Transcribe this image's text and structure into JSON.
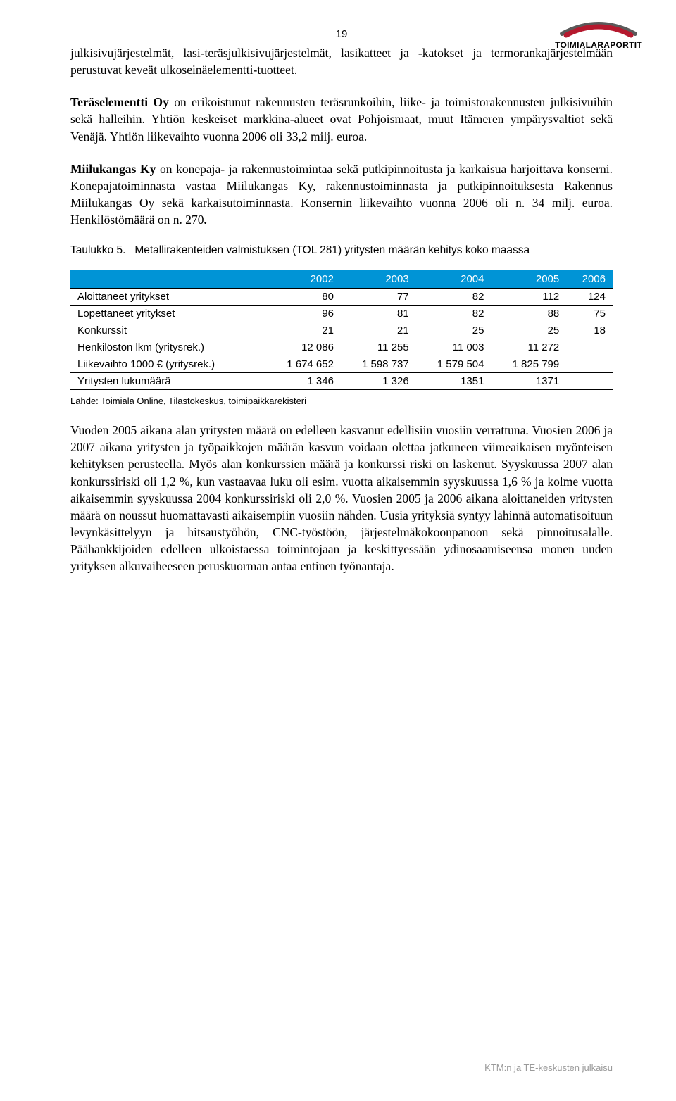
{
  "page_number": "19",
  "logo": {
    "brand": "TOIMIALARAPORTIT",
    "arc_back": "#5a5a5a",
    "arc_front": "#b5192e"
  },
  "paragraphs": {
    "p1": "julkisivujärjestelmät, lasi-teräsjulkisivujärjestelmät, lasikatteet ja -katokset ja termorankajärjestelmään perustuvat keveät ulkoseinäelementti-tuotteet.",
    "p2a_bold": "Teräselementti Oy",
    "p2a": " on erikoistunut rakennusten teräsrunkoihin, liike- ja toimistorakennusten julkisivuihin sekä halleihin. Yhtiön keskeiset markkina-alueet ovat Pohjoismaat, muut Itämeren ympärysvaltiot sekä Venäjä. Yhtiön liikevaihto vuonna 2006 oli 33,2 milj. euroa.",
    "p3a_bold": "Miilukangas Ky",
    "p3a": " on konepaja- ja rakennustoimintaa sekä putkipinnoitusta ja karkaisua harjoittava konserni. Konepajatoiminnasta vastaa Miilukangas Ky, rakennustoiminnasta ja putkipinnoituksesta Rakennus Miilukangas Oy sekä karkaisutoiminnasta. Konsernin liikevaihto vuonna 2006 oli n. 34 milj. euroa. Henkilöstömäärä on n. 270",
    "p3_bold_dot": ".",
    "p4": "Vuoden 2005 aikana alan yritysten määrä on edelleen kasvanut edellisiin vuosiin verrattuna. Vuosien 2006 ja 2007 aikana yritysten ja työpaikkojen määrän kasvun voidaan olettaa jatkuneen viimeaikaisen myönteisen kehityksen perusteella. Myös alan konkurssien määrä ja konkurssi riski on laskenut. Syyskuussa 2007 alan konkurssiriski oli 1,2 %, kun vastaavaa luku oli esim. vuotta aikaisemmin syyskuussa 1,6 % ja kolme vuotta aikaisemmin syyskuussa 2004 konkurssiriski oli 2,0 %. Vuosien 2005 ja 2006 aikana aloittaneiden yritysten määrä on noussut huomattavasti aikaisempiin vuosiin nähden. Uusia yrityksiä syntyy lähinnä automatisoituun levynkäsittelyyn ja hitsaustyöhön, CNC-työstöön, järjestelmäkokoonpanoon sekä pinnoitusalalle. Päähankkijoiden edelleen ulkoistaessa toimintojaan ja keskittyessään ydinosaamiseensa monen uuden yrityksen alkuvaiheeseen peruskuorman antaa entinen työnantaja."
  },
  "table": {
    "caption_prefix": "Taulukko 5.",
    "caption_rest": "Metallirakenteiden valmistuksen (TOL 281) yritysten määrän kehitys koko maassa",
    "header": [
      "",
      "2002",
      "2003",
      "2004",
      "2005",
      "2006"
    ],
    "rows": [
      [
        "Aloittaneet yritykset",
        "80",
        "77",
        "82",
        "112",
        "124"
      ],
      [
        "Lopettaneet yritykset",
        "96",
        "81",
        "82",
        "88",
        "75"
      ],
      [
        "Konkurssit",
        "21",
        "21",
        "25",
        "25",
        "18"
      ],
      [
        "Henkilöstön lkm (yritysrek.)",
        "12 086",
        "11 255",
        "11 003",
        "11 272",
        ""
      ],
      [
        "Liikevaihto 1000 € (yritysrek.)",
        "1 674 652",
        "1 598 737",
        "1 579 504",
        "1 825 799",
        ""
      ],
      [
        "Yritysten lukumäärä",
        "1 346",
        "1 326",
        "1351",
        "1371",
        ""
      ]
    ],
    "source": "Lähde: Toimiala Online, Tilastokeskus, toimipaikkarekisteri",
    "header_bg": "#0094d6",
    "header_fg": "#ffffff"
  },
  "footer": "KTM:n ja TE-keskusten julkaisu"
}
